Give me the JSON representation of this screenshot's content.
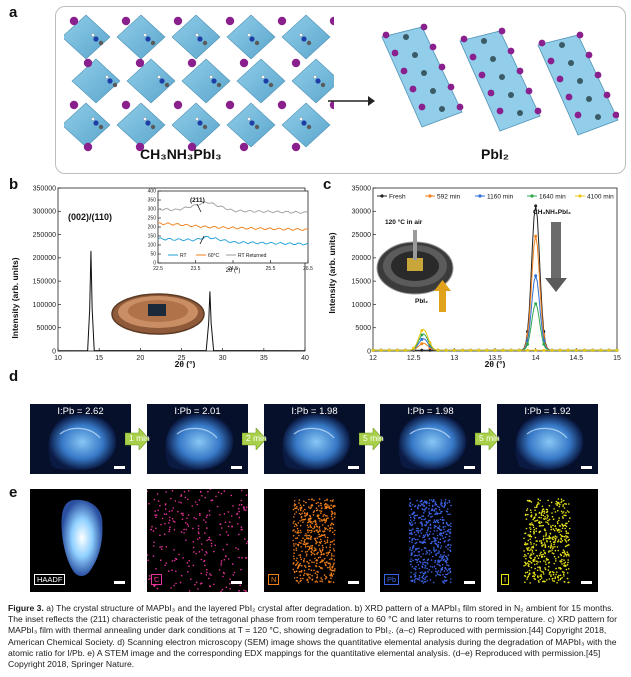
{
  "panels": {
    "a": "a",
    "b": "b",
    "c": "c",
    "d": "d",
    "e": "e"
  },
  "panel_a": {
    "left_label": "CH₃NH₃PbI₃",
    "right_label": "PbI₂"
  },
  "panel_b": {
    "ylabel": "Intensity (arb. units)",
    "xlabel": "2θ (°)",
    "peak_label": "(002)/(110)",
    "inset": {
      "peak_label": "(211)",
      "xlabel": "2θ (°)",
      "legend": [
        "RT",
        "60°C",
        "RT Returned"
      ]
    }
  },
  "panel_c": {
    "ylabel": "Intensity (arb. units)",
    "xlabel": "2θ (°)",
    "legend": [
      "Fresh",
      "592 min",
      "1160 min",
      "1640 min",
      "4100 min"
    ],
    "annotations": {
      "condition": "120 °C in air",
      "mapbi3": "CH₃NH₃PbI₃",
      "pbi2": "PbI₂"
    }
  },
  "panel_d": {
    "ratios": [
      "I:Pb = 2.62",
      "I:Pb = 2.01",
      "I:Pb = 1.98",
      "I:Pb = 1.98",
      "I:Pb = 1.92"
    ],
    "arrows": [
      "1 min",
      "2 min",
      "5 min",
      "5 min"
    ]
  },
  "panel_e": {
    "maps": [
      {
        "label": "HAADF",
        "color": "#ffffff"
      },
      {
        "label": "C",
        "color": "#e8339a"
      },
      {
        "label": "N",
        "color": "#f07f1a"
      },
      {
        "label": "Pb",
        "color": "#3c63e6"
      },
      {
        "label": "I",
        "color": "#e6e21a"
      }
    ]
  },
  "caption": {
    "fig": "Figure 3.",
    "text": " a) The crystal structure of MAPbI₃ and the layered PbI₂ crystal after degradation. b) XRD pattern of a MAPbI₃ film stored in N₂ ambient for 15 months. The inset reflects the (211) characteristic peak of the tetragonal phase from room temperature to 60 °C and later returns to room temperature. c) XRD pattern for MAPbI₃ film with thermal annealing under dark conditions at T = 120 °C, showing degradation to PbI₂. (a–c) Reproduced with permission.[44] Copyright 2018, American Chemical Society. d) Scanning electron microscopy (SEM) image shows the quantitative elemental analysis during the degradation of MAPbI₃ with the atomic ratio for I/Pb. e) A STEM image and the corresponding EDX mappings for the quantitative elemental analysis. (d–e) Reproduced with permission.[45] Copyright 2018, Springer Nature."
  },
  "chart_data": [
    {
      "type": "line",
      "panel": "b",
      "xlabel": "2θ (°)",
      "ylabel": "Intensity (arb. units)",
      "xlim": [
        10,
        40
      ],
      "ylim": [
        0,
        350000
      ],
      "xticks": [
        10,
        15,
        20,
        25,
        30,
        35,
        40
      ],
      "yticks": [
        0,
        50000,
        100000,
        150000,
        200000,
        250000,
        300000,
        350000
      ],
      "series": [
        {
          "x": [
            10,
            13.6,
            13.85,
            14.0,
            14.15,
            14.4,
            28.0,
            28.3,
            28.45,
            28.6,
            28.9,
            40
          ],
          "y": [
            500,
            800,
            90000,
            215000,
            90000,
            900,
            800,
            60000,
            128000,
            60000,
            900,
            500
          ]
        }
      ],
      "annotations": [
        {
          "text": "(002)/(110)",
          "x": 14.0,
          "y": 235000
        }
      ]
    },
    {
      "type": "line",
      "panel": "b-inset",
      "xlabel": "2θ (°)",
      "xlim": [
        22.5,
        26.5
      ],
      "ylim": [
        0,
        400
      ],
      "xticks": [
        22.5,
        23.5,
        24.5,
        25.5,
        26.5
      ],
      "yticks": [
        0,
        50,
        100,
        150,
        200,
        250,
        300,
        350,
        400
      ],
      "legend_position": "bottom",
      "series": [
        {
          "name": "RT",
          "color": "#1e9fd6",
          "x": [
            22.5,
            23.0,
            23.5,
            23.8,
            24.5,
            25.5,
            26.5
          ],
          "y": [
            135,
            130,
            128,
            145,
            115,
            110,
            105
          ]
        },
        {
          "name": "60°C",
          "color": "#f07f1a",
          "x": [
            22.5,
            23.0,
            23.5,
            23.8,
            24.5,
            25.5,
            26.5
          ],
          "y": [
            220,
            215,
            205,
            200,
            195,
            190,
            185
          ]
        },
        {
          "name": "RT Returned",
          "color": "#9e9e9e",
          "x": [
            22.5,
            23.0,
            23.5,
            23.8,
            24.5,
            25.5,
            26.5
          ],
          "y": [
            300,
            295,
            320,
            340,
            290,
            285,
            280
          ]
        }
      ]
    },
    {
      "type": "line",
      "panel": "c",
      "xlabel": "2θ (°)",
      "ylabel": "Intensity (arb. units)",
      "xlim": [
        12,
        15
      ],
      "ylim": [
        0,
        35000
      ],
      "xticks": [
        12,
        12.5,
        13,
        13.5,
        14,
        14.5,
        15
      ],
      "yticks": [
        0,
        5000,
        10000,
        15000,
        20000,
        25000,
        30000,
        35000
      ],
      "legend_position": "top",
      "series": [
        {
          "name": "Fresh",
          "color": "#222222",
          "pbi2": 0,
          "mapbi3": 31000
        },
        {
          "name": "592 min",
          "color": "#f07f1a",
          "pbi2": 1500,
          "mapbi3": 24500
        },
        {
          "name": "1160 min",
          "color": "#2f6fd6",
          "pbi2": 2500,
          "mapbi3": 16000
        },
        {
          "name": "1640 min",
          "color": "#2fa84f",
          "pbi2": 3500,
          "mapbi3": 10000
        },
        {
          "name": "4100 min",
          "color": "#e8c81a",
          "pbi2": 4500,
          "mapbi3": 0
        }
      ],
      "peaks": {
        "pbi2_center": 12.62,
        "pbi2_width": 0.08,
        "mapbi3_center": 14.0,
        "mapbi3_width": 0.07
      }
    }
  ]
}
